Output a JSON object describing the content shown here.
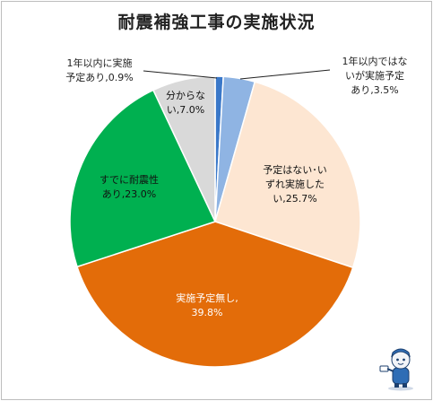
{
  "chart_data": {
    "type": "pie",
    "title": "耐震補強工事の実施状況",
    "start_angle_deg": 0,
    "direction": "clockwise",
    "slices": [
      {
        "label_lines": [
          "1年以内に実施",
          "予定あり,0.9%"
        ],
        "value": 0.9,
        "color": "#3a78c9"
      },
      {
        "label_lines": [
          "1年以内ではな",
          "いが実施予定",
          "あり,3.5%"
        ],
        "value": 3.5,
        "color": "#8fb4e3"
      },
      {
        "label_lines": [
          "予定はない･い",
          "ずれ実施した",
          "い,25.7%"
        ],
        "value": 25.7,
        "color": "#fde6d2"
      },
      {
        "label_lines": [
          "実施予定無し,",
          "39.8%"
        ],
        "value": 39.8,
        "color": "#e36c09"
      },
      {
        "label_lines": [
          "すでに耐震性",
          "あり,23.0%"
        ],
        "value": 23.0,
        "color": "#00b050"
      },
      {
        "label_lines": [
          "分からな",
          "い,7.0%"
        ],
        "value": 7.0,
        "color": "#d9d9d9"
      }
    ]
  }
}
